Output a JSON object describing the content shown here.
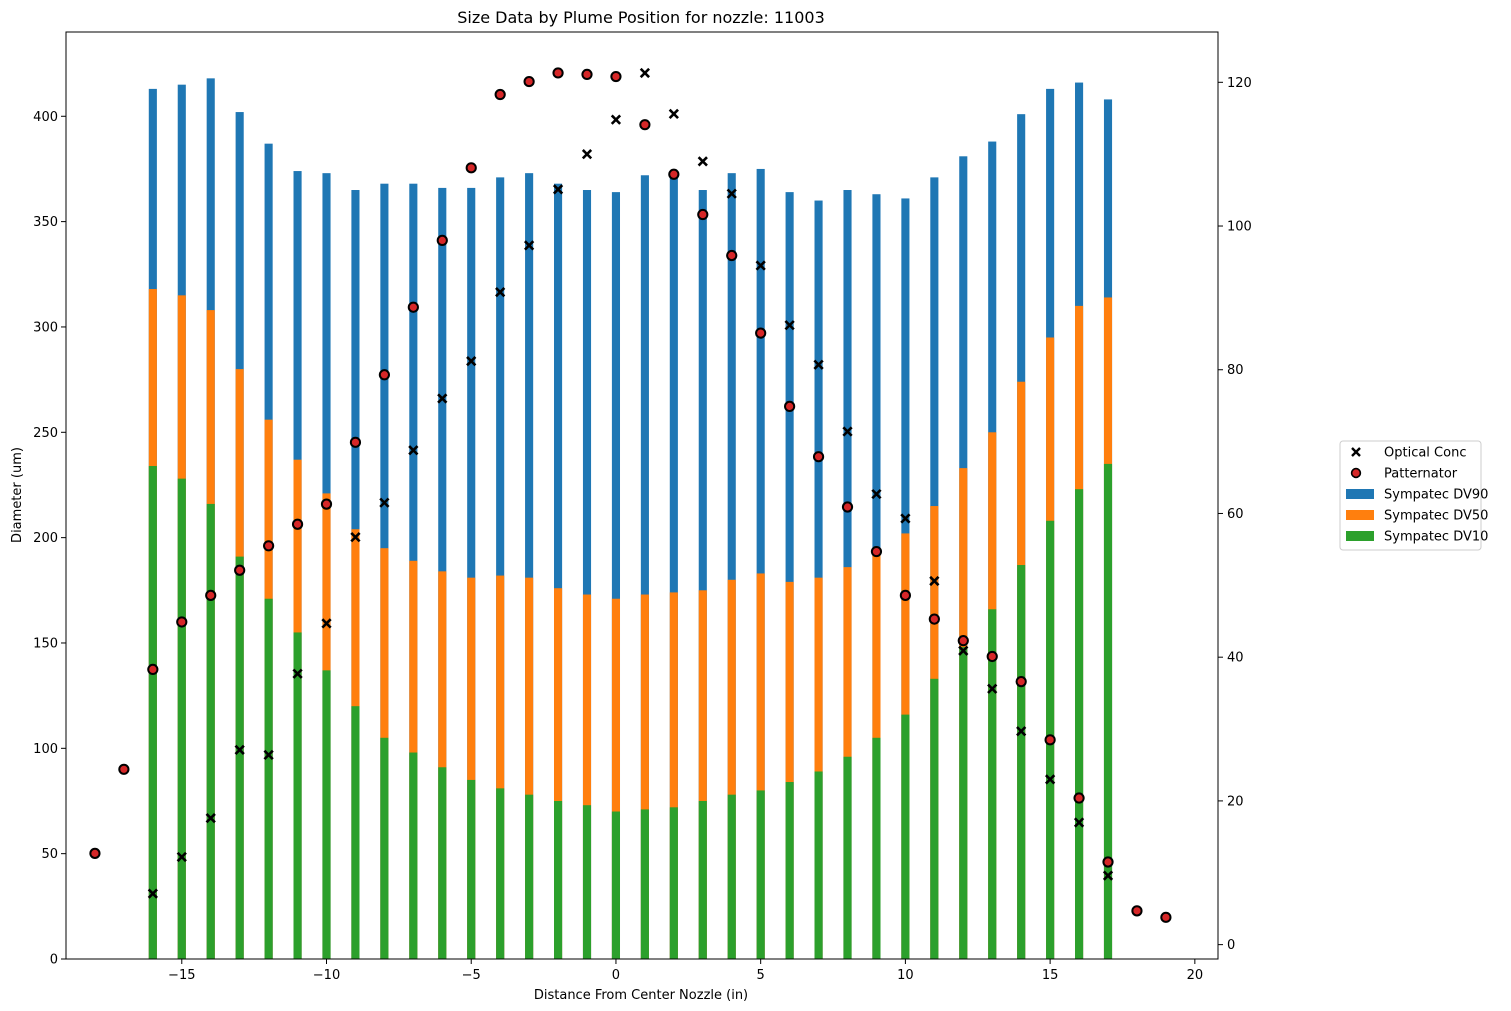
{
  "chart_data": {
    "type": "bar",
    "stacking": "overlaid",
    "title": "Size Data by Plume Position for nozzle: 11003",
    "xlabel": "Distance From Center Nozzle (in)",
    "ylabel": "Diameter (um)",
    "y2label": "",
    "xlim": [
      -19.0,
      20.8
    ],
    "ylim": [
      0,
      440
    ],
    "y2lim": [
      -2,
      127
    ],
    "xticks": [
      -15,
      -10,
      -5,
      0,
      5,
      10,
      15,
      20
    ],
    "xtick_labels": [
      "−15",
      "−10",
      "−5",
      "0",
      "5",
      "10",
      "15",
      "20"
    ],
    "yticks": [
      0,
      50,
      100,
      150,
      200,
      250,
      300,
      350,
      400
    ],
    "yticks_labels": [
      "0",
      "50",
      "100",
      "150",
      "200",
      "250",
      "300",
      "350",
      "400"
    ],
    "y2ticks": [
      0,
      20,
      40,
      60,
      80,
      100,
      120
    ],
    "y2ticks_labels": [
      "0",
      "20",
      "40",
      "60",
      "80",
      "100",
      "120"
    ],
    "grid": false,
    "legend_placement": "outside-right",
    "legend": [
      {
        "label": "Optical Conc",
        "marker": "x",
        "color": "#000000"
      },
      {
        "label": "Patternator",
        "marker": "circle",
        "color": "#d62728"
      },
      {
        "label": "Sympatec DV90",
        "marker": "bar",
        "color": "#1f77b4"
      },
      {
        "label": "Sympatec DV50",
        "marker": "bar",
        "color": "#ff7f0e"
      },
      {
        "label": "Sympatec DV10",
        "marker": "bar",
        "color": "#2ca02c"
      }
    ],
    "bars": {
      "x": [
        -16,
        -15,
        -14,
        -13,
        -12,
        -11,
        -10,
        -9,
        -8,
        -7,
        -6,
        -5,
        -4,
        -3,
        -2,
        -1,
        0,
        1,
        2,
        3,
        4,
        5,
        6,
        7,
        8,
        9,
        10,
        11,
        12,
        13,
        14,
        15,
        16,
        17
      ],
      "series": [
        {
          "name": "Sympatec DV90",
          "color": "#1f77b4",
          "values": [
            413,
            415,
            418,
            402,
            387,
            374,
            373,
            365,
            368,
            368,
            366,
            366,
            371,
            373,
            368,
            365,
            364,
            372,
            372,
            365,
            373,
            375,
            364,
            360,
            365,
            363,
            361,
            371,
            381,
            388,
            401,
            413,
            416,
            408
          ]
        },
        {
          "name": "Sympatec DV50",
          "color": "#ff7f0e",
          "values": [
            318,
            315,
            308,
            280,
            256,
            237,
            221,
            204,
            195,
            189,
            184,
            181,
            182,
            181,
            176,
            173,
            171,
            173,
            174,
            175,
            180,
            183,
            179,
            181,
            186,
            192,
            202,
            215,
            233,
            250,
            274,
            295,
            310,
            314
          ]
        },
        {
          "name": "Sympatec DV10",
          "color": "#2ca02c",
          "values": [
            234,
            228,
            216,
            191,
            171,
            155,
            137,
            120,
            105,
            98,
            91,
            85,
            81,
            78,
            75,
            73,
            70,
            71,
            72,
            75,
            78,
            80,
            84,
            89,
            96,
            105,
            116,
            133,
            148,
            166,
            187,
            208,
            223,
            235
          ]
        }
      ]
    },
    "scatter": [
      {
        "name": "Optical Conc",
        "axis": "right",
        "marker": "x",
        "color": "#000000",
        "x": [
          -16,
          -15,
          -14,
          -13,
          -12,
          -11,
          -10,
          -9,
          -8,
          -7,
          -6,
          -5,
          -4,
          -3,
          -2,
          -1,
          0,
          1,
          2,
          3,
          4,
          5,
          6,
          7,
          8,
          9,
          10,
          11,
          12,
          13,
          14,
          15,
          16,
          17
        ],
        "y": [
          7.1,
          12.2,
          17.6,
          27.1,
          26.4,
          37.7,
          44.7,
          56.7,
          61.5,
          68.8,
          76.0,
          81.2,
          90.8,
          97.3,
          105.1,
          110.0,
          114.8,
          121.3,
          115.6,
          109.0,
          104.5,
          94.5,
          86.2,
          80.7,
          71.4,
          62.7,
          59.3,
          50.6,
          40.9,
          35.6,
          29.7,
          23.0,
          17.0,
          9.6
        ]
      },
      {
        "name": "Patternator",
        "axis": "right",
        "marker": "circle",
        "color": "#d62728",
        "x": [
          -18,
          -17,
          -16,
          -15,
          -14,
          -13,
          -12,
          -11,
          -10,
          -9,
          -8,
          -7,
          -6,
          -5,
          -4,
          -3,
          -2,
          -1,
          0,
          1,
          2,
          3,
          4,
          5,
          6,
          7,
          8,
          9,
          10,
          11,
          12,
          13,
          14,
          15,
          16,
          17,
          18,
          19
        ],
        "y": [
          12.7,
          24.4,
          38.3,
          44.9,
          48.6,
          52.1,
          55.5,
          58.5,
          61.3,
          69.9,
          79.3,
          88.7,
          98.0,
          108.1,
          118.3,
          120.1,
          121.3,
          121.1,
          120.8,
          114.1,
          107.2,
          101.6,
          95.9,
          85.1,
          74.9,
          67.9,
          60.9,
          54.7,
          48.6,
          45.3,
          42.3,
          40.1,
          36.6,
          28.5,
          20.4,
          11.5,
          4.7,
          3.8
        ]
      }
    ]
  }
}
